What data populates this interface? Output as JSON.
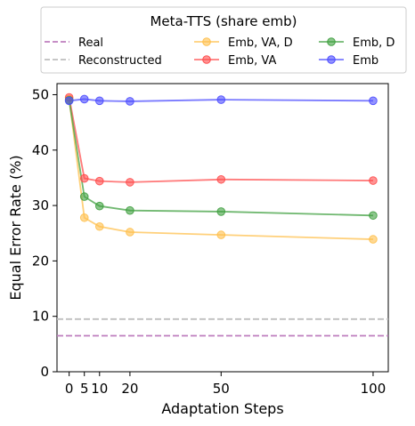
{
  "chart_data": {
    "type": "line",
    "title": "",
    "xlabel": "Adaptation Steps",
    "ylabel": "Equal Error Rate (%)",
    "xlim": [
      -4,
      105
    ],
    "ylim": [
      0,
      52
    ],
    "xticks": [
      0,
      5,
      10,
      20,
      50,
      100
    ],
    "yticks": [
      0,
      10,
      20,
      30,
      40,
      50
    ],
    "grid": false,
    "legend": {
      "title": "Meta-TTS (share emb)",
      "placement": "top-outside",
      "columns": 3
    },
    "reference_lines": [
      {
        "name": "Real",
        "y": 6.5,
        "color": "#bf7fbf",
        "style": "dashed"
      },
      {
        "name": "Reconstructed",
        "y": 9.5,
        "color": "#bfbfbf",
        "style": "dashed"
      }
    ],
    "x": [
      0,
      5,
      10,
      20,
      50,
      100
    ],
    "series": [
      {
        "name": "Emb, VA, D",
        "color": "#ffc04d",
        "values": [
          49.2,
          27.8,
          26.2,
          25.2,
          24.7,
          23.9
        ]
      },
      {
        "name": "Emb, VA",
        "color": "#ff4d4d",
        "values": [
          49.5,
          34.9,
          34.4,
          34.2,
          34.7,
          34.5
        ]
      },
      {
        "name": "Emb, D",
        "color": "#40a040",
        "values": [
          49.0,
          31.6,
          29.9,
          29.1,
          28.9,
          28.2
        ]
      },
      {
        "name": "Emb",
        "color": "#4d4dff",
        "values": [
          48.9,
          49.2,
          48.9,
          48.8,
          49.1,
          48.9
        ]
      }
    ]
  }
}
